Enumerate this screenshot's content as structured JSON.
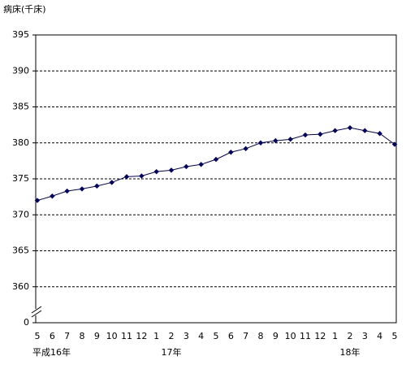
{
  "chart_data": {
    "type": "line",
    "y_label": "病床(千床)",
    "categories": [
      "5",
      "6",
      "7",
      "8",
      "9",
      "10",
      "11",
      "12",
      "1",
      "2",
      "3",
      "4",
      "5",
      "6",
      "7",
      "8",
      "9",
      "10",
      "11",
      "12",
      "1",
      "2",
      "3",
      "4",
      "5"
    ],
    "categories2": [
      "平成16年",
      null,
      null,
      null,
      null,
      null,
      null,
      null,
      null,
      "17年",
      null,
      null,
      null,
      null,
      null,
      null,
      null,
      null,
      null,
      null,
      null,
      "18年",
      null,
      null,
      null
    ],
    "series": [
      {
        "name": "病床",
        "color": "#000066",
        "values": [
          372.0,
          372.6,
          373.3,
          373.6,
          374.0,
          374.5,
          375.3,
          375.4,
          376.0,
          376.2,
          376.7,
          377.0,
          377.7,
          378.7,
          379.2,
          380.0,
          380.3,
          380.5,
          381.1,
          381.2,
          381.7,
          382.1,
          381.7,
          381.3,
          379.8
        ]
      }
    ],
    "ylim": [
      0,
      395
    ],
    "ybreak": [
      0,
      360
    ],
    "yticks": [
      0,
      360,
      365,
      370,
      375,
      380,
      385,
      390,
      395
    ],
    "grid": true
  }
}
